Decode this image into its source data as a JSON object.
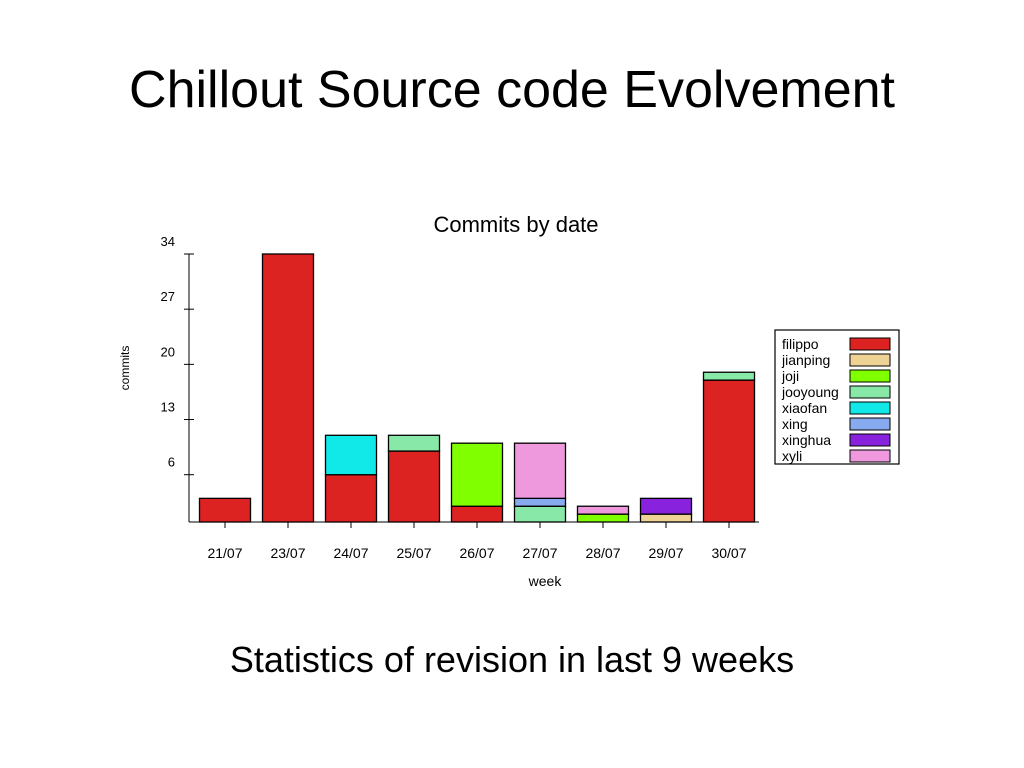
{
  "slide": {
    "title": "Chillout Source code Evolvement",
    "caption": "Statistics of revision in last 9 weeks"
  },
  "chart_data": {
    "type": "bar",
    "stacked": true,
    "title": "Commits by date",
    "xlabel": "week",
    "ylabel": "commits",
    "categories": [
      "21/07",
      "23/07",
      "24/07",
      "25/07",
      "26/07",
      "27/07",
      "28/07",
      "29/07",
      "30/07"
    ],
    "yticks": [
      6,
      13,
      20,
      27,
      34
    ],
    "ylim": [
      0,
      35
    ],
    "legend_position": "right",
    "series": [
      {
        "name": "filippo",
        "color": "#dd2222",
        "values": [
          3,
          34,
          6,
          9,
          2,
          0,
          0,
          0,
          18
        ]
      },
      {
        "name": "jianping",
        "color": "#eed394",
        "values": [
          0,
          0,
          0,
          0,
          0,
          0,
          0,
          1,
          0
        ]
      },
      {
        "name": "joji",
        "color": "#80ff00",
        "values": [
          0,
          0,
          0,
          0,
          8,
          0,
          1,
          0,
          0
        ]
      },
      {
        "name": "jooyoung",
        "color": "#88e8a8",
        "values": [
          0,
          0,
          0,
          2,
          0,
          2,
          0,
          0,
          1
        ]
      },
      {
        "name": "xiaofan",
        "color": "#11e8e8",
        "values": [
          0,
          0,
          5,
          0,
          0,
          0,
          0,
          0,
          0
        ]
      },
      {
        "name": "xing",
        "color": "#88aaee",
        "values": [
          0,
          0,
          0,
          0,
          0,
          1,
          0,
          0,
          0
        ]
      },
      {
        "name": "xinghua",
        "color": "#8822dd",
        "values": [
          0,
          0,
          0,
          0,
          0,
          0,
          0,
          2,
          0
        ]
      },
      {
        "name": "xyli",
        "color": "#ee99dd",
        "values": [
          0,
          0,
          0,
          0,
          0,
          7,
          1,
          0,
          0
        ]
      }
    ]
  }
}
